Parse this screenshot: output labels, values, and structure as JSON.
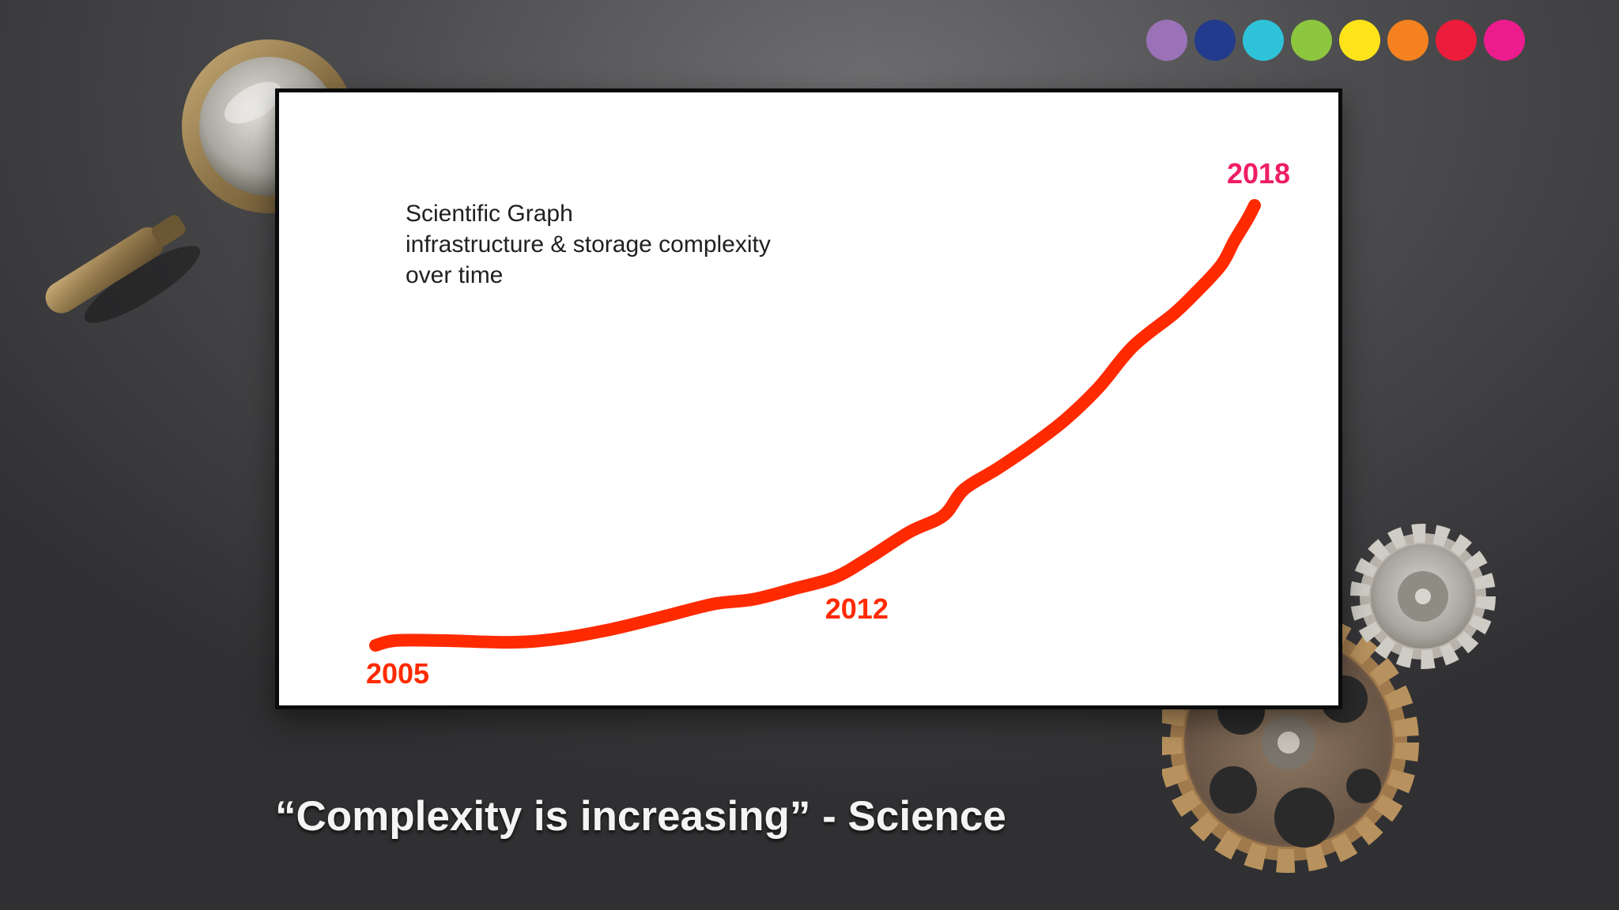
{
  "palette_dots": [
    {
      "color": "#9b72b8"
    },
    {
      "color": "#223b8c"
    },
    {
      "color": "#2ec3d8"
    },
    {
      "color": "#8dc63f"
    },
    {
      "color": "#fde41a"
    },
    {
      "color": "#f5821f"
    },
    {
      "color": "#ec1c3c"
    },
    {
      "color": "#ec1c8c"
    }
  ],
  "decorations": {
    "left": "magnifying-glass-icon",
    "right": "gears-icon"
  },
  "chart_data": {
    "type": "line",
    "title_lines": [
      "Scientific Graph",
      "infrastructure & storage complexity",
      "over time"
    ],
    "line_color": "#ff2a00",
    "x_range": [
      2005,
      2018
    ],
    "y_range": [
      0,
      100
    ],
    "points": [
      {
        "x": 2005.0,
        "y": 0.0
      },
      {
        "x": 2005.3,
        "y": 1.1
      },
      {
        "x": 2006.0,
        "y": 1.1
      },
      {
        "x": 2007.0,
        "y": 0.7
      },
      {
        "x": 2007.7,
        "y": 1.5
      },
      {
        "x": 2008.5,
        "y": 3.7
      },
      {
        "x": 2009.3,
        "y": 6.7
      },
      {
        "x": 2010.0,
        "y": 9.4
      },
      {
        "x": 2010.6,
        "y": 10.5
      },
      {
        "x": 2011.2,
        "y": 12.9
      },
      {
        "x": 2011.8,
        "y": 15.5
      },
      {
        "x": 2012.3,
        "y": 19.9
      },
      {
        "x": 2012.9,
        "y": 25.8
      },
      {
        "x": 2013.4,
        "y": 29.5
      },
      {
        "x": 2013.7,
        "y": 35.4
      },
      {
        "x": 2014.2,
        "y": 40.2
      },
      {
        "x": 2014.7,
        "y": 45.4
      },
      {
        "x": 2015.2,
        "y": 51.3
      },
      {
        "x": 2015.7,
        "y": 58.7
      },
      {
        "x": 2016.2,
        "y": 67.9
      },
      {
        "x": 2016.8,
        "y": 75.3
      },
      {
        "x": 2017.1,
        "y": 79.7
      },
      {
        "x": 2017.5,
        "y": 86.3
      },
      {
        "x": 2017.7,
        "y": 91.9
      },
      {
        "x": 2017.9,
        "y": 97.0
      },
      {
        "x": 2018.0,
        "y": 100.0
      }
    ],
    "year_labels": [
      {
        "text": "2005",
        "x": 2005,
        "color": "#ff2a00"
      },
      {
        "text": "2012",
        "x": 2012,
        "color": "#ff2a00"
      },
      {
        "text": "2018",
        "x": 2018,
        "color": "#ee1e66"
      }
    ]
  },
  "caption": "“Complexity is increasing” - Science"
}
